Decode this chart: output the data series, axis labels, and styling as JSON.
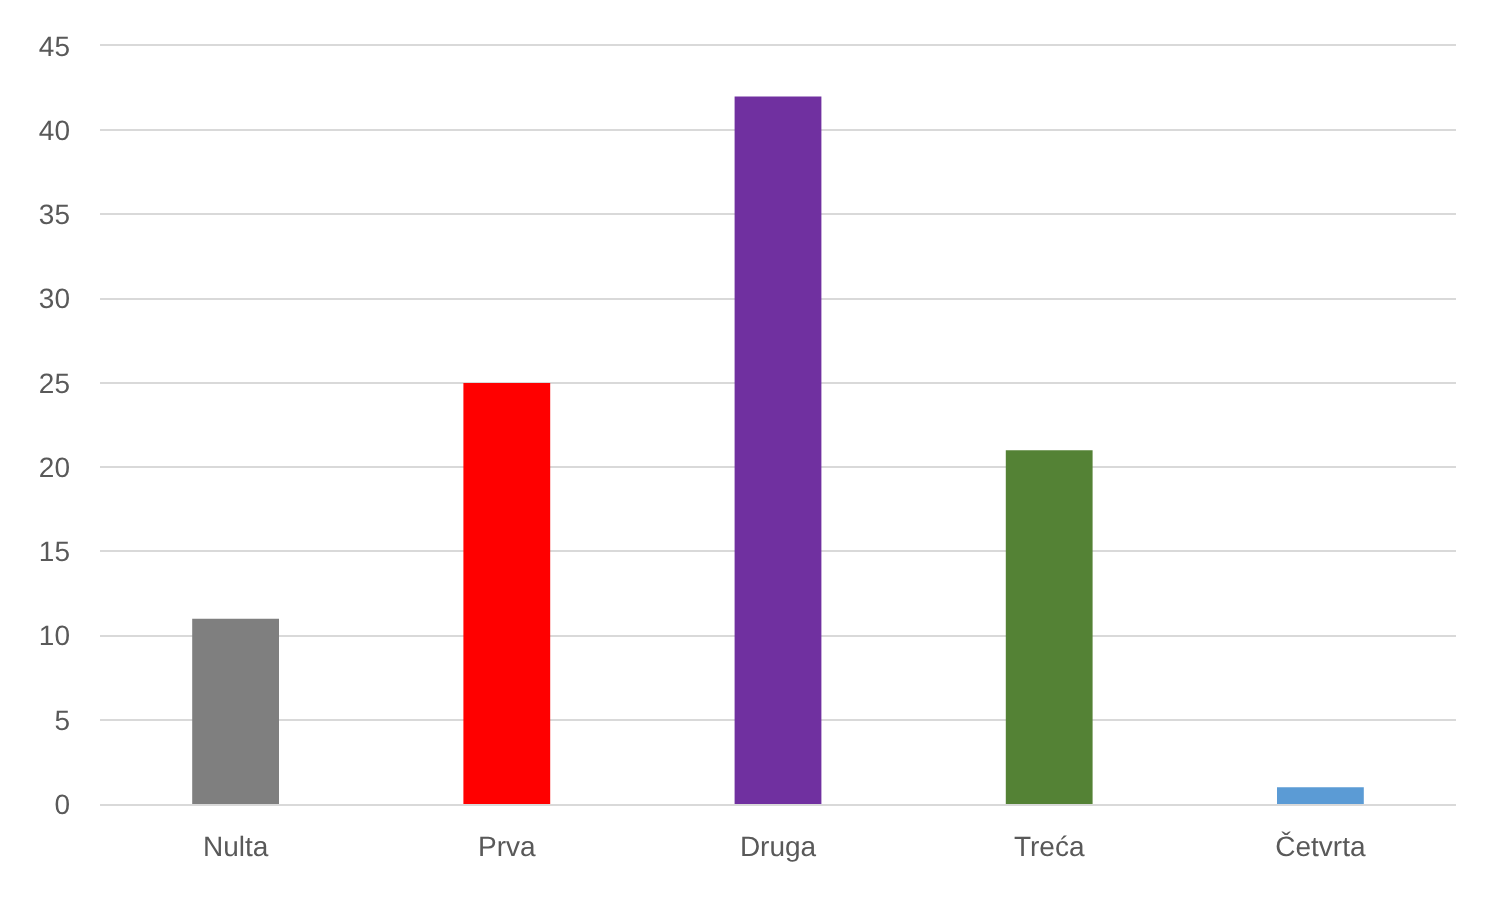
{
  "chart_data": {
    "type": "bar",
    "categories": [
      "Nulta",
      "Prva",
      "Druga",
      "Treća",
      "Četvrta"
    ],
    "values": [
      11,
      25,
      42,
      21,
      1
    ],
    "colors": [
      "#7f7f7f",
      "#ff0000",
      "#7030a0",
      "#548235",
      "#5b9bd5"
    ],
    "ylim": [
      0,
      45
    ],
    "yticks": [
      0,
      5,
      10,
      15,
      20,
      25,
      30,
      35,
      40,
      45
    ],
    "grid": "y"
  }
}
